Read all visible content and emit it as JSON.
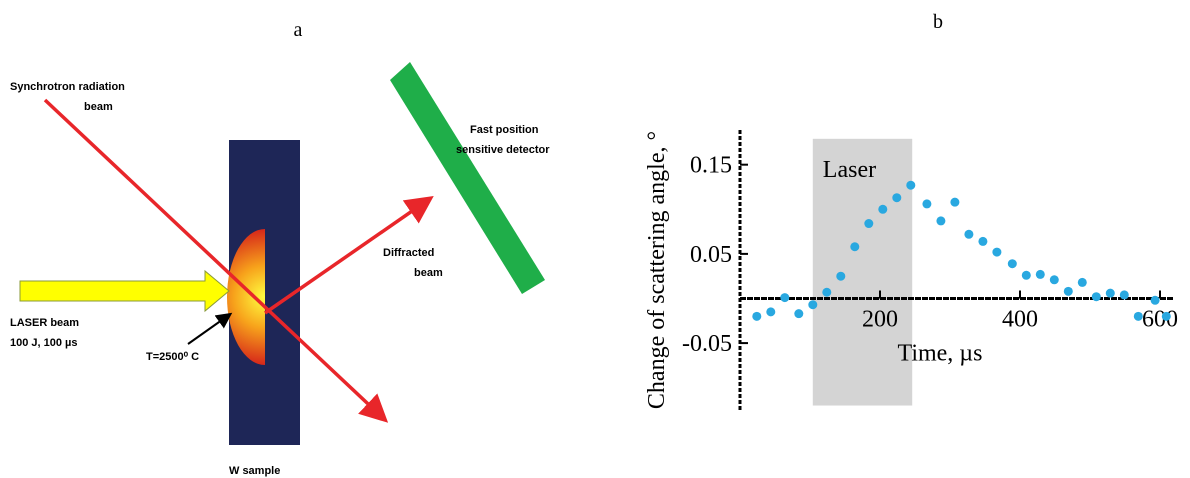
{
  "panel_a": {
    "label": "a",
    "texts": {
      "synchrotron": [
        "Synchrotron radiation",
        "beam"
      ],
      "detector": [
        "Fast position",
        "sensitive detector"
      ],
      "diffracted": [
        "Diffracted",
        "beam"
      ],
      "laser": [
        "LASER beam",
        "100 J, 100 µs"
      ],
      "temperature": "T=2500⁰ C",
      "sample": "W sample"
    }
  },
  "chart_data": {
    "type": "scatter",
    "panel_label": "b",
    "x_label": "Time, µs",
    "y_label": "Change of scattering angle, °",
    "xlim": [
      0,
      620
    ],
    "ylim": [
      -0.125,
      0.19
    ],
    "xticks": [
      200,
      400,
      600
    ],
    "yticks": [
      -0.05,
      0.05,
      0.15
    ],
    "laser_region": {
      "label": "Laser",
      "x": [
        104,
        246
      ],
      "y": [
        -0.12,
        0.179
      ]
    },
    "x": [
      24,
      44,
      64,
      84,
      104,
      124,
      144,
      164,
      184,
      204,
      224,
      244,
      267,
      287,
      307,
      327,
      347,
      367,
      389,
      409,
      429,
      449,
      469,
      489,
      509,
      529,
      549,
      569,
      593,
      609
    ],
    "series": [
      {
        "color": "#29a8e0",
        "values": [
          -0.02,
          -0.015,
          0.001,
          -0.017,
          -0.007,
          0.007,
          0.025,
          0.058,
          0.084,
          0.1,
          0.113,
          0.127,
          0.106,
          0.087,
          0.108,
          0.072,
          0.064,
          0.052,
          0.039,
          0.026,
          0.027,
          0.021,
          0.008,
          0.018,
          0.002,
          0.006,
          0.004,
          -0.02,
          -0.002,
          -0.02
        ]
      }
    ]
  }
}
